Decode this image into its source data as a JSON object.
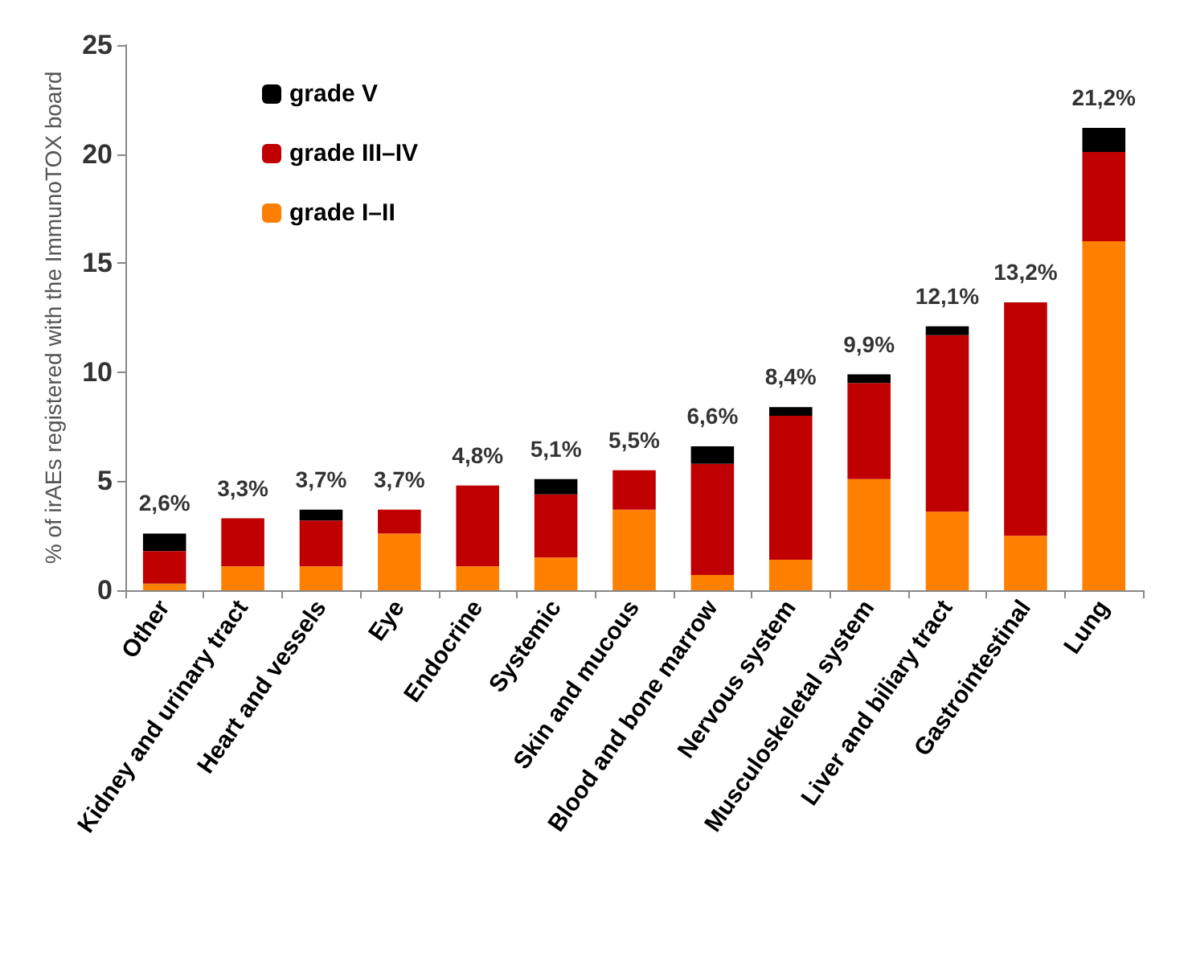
{
  "chart_data": {
    "type": "bar",
    "stacked": true,
    "ylabel": "% of irAEs registered with the ImmunoTOX board",
    "categories": [
      "Other",
      "Kidney and urinary tract",
      "Heart and vessels",
      "Eye",
      "Endocrine",
      "Systemic",
      "Skin and mucous",
      "Blood and bone marrow",
      "Nervous system",
      "Musculoskeletal system",
      "Liver and biliary tract",
      "Gastrointestinal",
      "Lung"
    ],
    "series": [
      {
        "name": "grade I–II",
        "color": "#ff8000",
        "values": [
          0.3,
          1.1,
          1.1,
          2.6,
          1.1,
          1.5,
          3.7,
          0.7,
          1.4,
          5.1,
          3.6,
          2.5,
          16.0
        ]
      },
      {
        "name": "grade III–IV",
        "color": "#c00000",
        "values": [
          1.5,
          2.2,
          2.1,
          1.1,
          3.7,
          2.9,
          1.8,
          5.1,
          6.6,
          4.4,
          8.1,
          10.7,
          4.1
        ]
      },
      {
        "name": "grade V",
        "color": "#000000",
        "values": [
          0.8,
          null,
          0.5,
          null,
          null,
          0.7,
          null,
          0.8,
          0.4,
          0.4,
          0.4,
          null,
          1.1
        ]
      }
    ],
    "totals": [
      "2,6%",
      "3,3%",
      "3,7%",
      "3,7%",
      "4,8%",
      "5,1%",
      "5,5%",
      "6,6%",
      "8,4%",
      "9,9%",
      "12,1%",
      "13,2%",
      "21,2%"
    ],
    "ylim": [
      0,
      25
    ],
    "yticks": [
      0,
      5,
      10,
      15,
      20,
      25
    ],
    "grid": false,
    "legend": "top left"
  }
}
